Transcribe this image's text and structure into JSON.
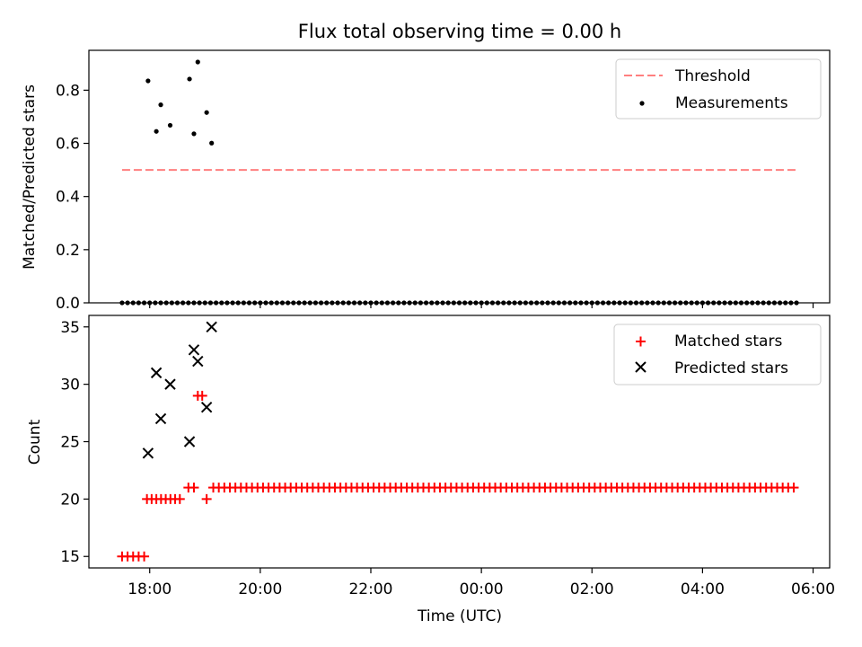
{
  "chart_data": [
    {
      "type": "scatter",
      "title": "Flux total observing time = 0.00 h",
      "xlabel": "",
      "ylabel": "Matched/Predicted stars",
      "xlim": [
        16.9,
        30.3
      ],
      "ylim": [
        0.0,
        0.95
      ],
      "yticks": [
        0.0,
        0.2,
        0.4,
        0.6,
        0.8
      ],
      "yticklabels": [
        "0.0",
        "0.2",
        "0.4",
        "0.6",
        "0.8"
      ],
      "legend": [
        "Threshold",
        "Measurements"
      ],
      "legend_position": "top-right",
      "colors": {
        "threshold": "#ff7f7f",
        "measurements": "#000000"
      },
      "threshold": {
        "name": "Threshold",
        "x": [
          17.5,
          29.7
        ],
        "y": 0.5
      },
      "measurements": {
        "name": "Measurements",
        "points": [
          [
            17.97,
            0.835
          ],
          [
            18.12,
            0.645
          ],
          [
            18.2,
            0.745
          ],
          [
            18.37,
            0.668
          ],
          [
            18.72,
            0.842
          ],
          [
            18.8,
            0.636
          ],
          [
            18.87,
            0.906
          ],
          [
            19.03,
            0.716
          ],
          [
            19.12,
            0.601
          ]
        ],
        "zeros_start": 17.5,
        "zeros_end": 29.7,
        "zeros_step": 0.1
      }
    },
    {
      "type": "scatter",
      "title": "",
      "xlabel": "Time (UTC)",
      "ylabel": "Count",
      "xlim": [
        16.9,
        30.3
      ],
      "ylim": [
        14.0,
        36.0
      ],
      "yticks": [
        15,
        20,
        25,
        30,
        35
      ],
      "yticklabels": [
        "15",
        "20",
        "25",
        "30",
        "35"
      ],
      "xticks": [
        18,
        20,
        22,
        24,
        26,
        28,
        30
      ],
      "xticklabels": [
        "18:00",
        "20:00",
        "22:00",
        "00:00",
        "02:00",
        "04:00",
        "06:00"
      ],
      "legend": [
        "Matched stars",
        "Predicted stars"
      ],
      "legend_position": "top-right",
      "colors": {
        "matched": "#ff0000",
        "predicted": "#000000"
      },
      "matched": {
        "name": "Matched stars",
        "segments": [
          {
            "x_start": 17.5,
            "x_end": 17.9,
            "step": 0.1,
            "value": 15
          },
          {
            "x_start": 17.95,
            "x_end": 18.6,
            "step": 0.085,
            "value": 20
          },
          {
            "x_start": 18.7,
            "x_end": 18.8,
            "step": 0.1,
            "value": 21
          },
          {
            "x_start": 19.15,
            "x_end": 29.7,
            "step": 0.1,
            "value": 21
          }
        ],
        "points": [
          [
            18.87,
            29
          ],
          [
            18.95,
            29
          ],
          [
            19.03,
            20
          ]
        ]
      },
      "predicted": {
        "name": "Predicted stars",
        "points": [
          [
            17.97,
            24
          ],
          [
            18.12,
            31
          ],
          [
            18.2,
            27
          ],
          [
            18.37,
            30
          ],
          [
            18.72,
            25
          ],
          [
            18.8,
            33
          ],
          [
            18.87,
            32
          ],
          [
            19.03,
            28
          ],
          [
            19.12,
            35
          ]
        ]
      }
    }
  ]
}
